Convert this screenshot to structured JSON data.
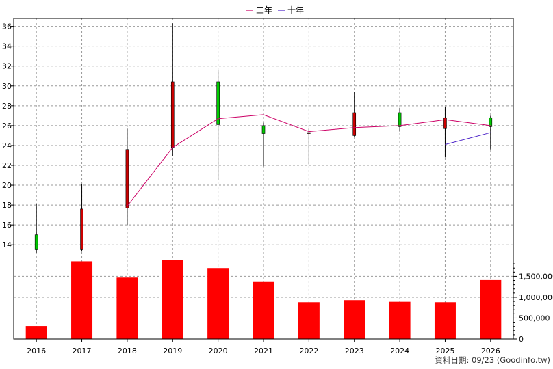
{
  "chart_data": {
    "type": "candlestick+line+bar",
    "legend": [
      {
        "name": "三年",
        "color": "#cc0066"
      },
      {
        "name": "十年",
        "color": "#4b22c8"
      }
    ],
    "legend_position": "top-center",
    "years": [
      "2016",
      "2017",
      "2018",
      "2019",
      "2020",
      "2021",
      "2022",
      "2023",
      "2024",
      "2025",
      "2026"
    ],
    "price_axis": {
      "min": 12.5,
      "max": 36.8,
      "ticks": [
        14,
        16,
        18,
        20,
        22,
        24,
        26,
        28,
        30,
        32,
        34,
        36
      ],
      "grid": true
    },
    "candles": [
      {
        "year": "2016",
        "open": 13.5,
        "close": 15.0,
        "high": 18.1,
        "low": 13.2
      },
      {
        "year": "2017",
        "open": 17.6,
        "close": 13.5,
        "high": 20.1,
        "low": 13.3
      },
      {
        "year": "2018",
        "open": 23.6,
        "close": 17.7,
        "high": 25.7,
        "low": 16.0
      },
      {
        "year": "2019",
        "open": 30.4,
        "close": 23.8,
        "high": 36.3,
        "low": 22.9
      },
      {
        "year": "2020",
        "open": 26.1,
        "close": 30.4,
        "high": 31.6,
        "low": 20.5
      },
      {
        "year": "2021",
        "open": 25.2,
        "close": 26.0,
        "high": 26.3,
        "low": 21.9
      },
      {
        "year": "2022",
        "open": 25.3,
        "close": 25.2,
        "high": 25.8,
        "low": 22.1
      },
      {
        "year": "2023",
        "open": 27.3,
        "close": 25.0,
        "high": 29.4,
        "low": 24.9
      },
      {
        "year": "2024",
        "open": 25.9,
        "close": 27.3,
        "high": 27.8,
        "low": 25.4
      },
      {
        "year": "2025",
        "open": 26.8,
        "close": 25.7,
        "high": 27.9,
        "low": 22.8
      },
      {
        "year": "2026",
        "open": 25.9,
        "close": 26.8,
        "high": 27.0,
        "low": 23.6
      }
    ],
    "series": [
      {
        "name": "三年",
        "color": "#cc0066",
        "points": [
          [
            "2018",
            17.9
          ],
          [
            "2019",
            23.8
          ],
          [
            "2020",
            26.7
          ],
          [
            "2021",
            27.1
          ],
          [
            "2022",
            25.4
          ],
          [
            "2023",
            25.8
          ],
          [
            "2024",
            26.0
          ],
          [
            "2025",
            26.6
          ],
          [
            "2026",
            26.0
          ]
        ]
      },
      {
        "name": "十年",
        "color": "#4b22c8",
        "points": [
          [
            "2025",
            24.1
          ],
          [
            "2026",
            25.3
          ]
        ]
      }
    ],
    "volume_axis": {
      "min": 0,
      "max": 1900000,
      "ticks": [
        0,
        500000,
        1000000,
        1500000
      ],
      "tick_labels": [
        "0",
        "500,000",
        "1,000,000",
        "1,500,000"
      ]
    },
    "volume": {
      "color": "#ff0000",
      "values": [
        310000,
        1860000,
        1470000,
        1890000,
        1700000,
        1380000,
        880000,
        930000,
        890000,
        880000,
        1410000
      ]
    },
    "colors": {
      "up": "#00cc00",
      "down": "#cc0000",
      "wick": "#000000",
      "grid": "#999999"
    },
    "footer": "資料日期: 09/23  (Goodinfo.tw)"
  }
}
